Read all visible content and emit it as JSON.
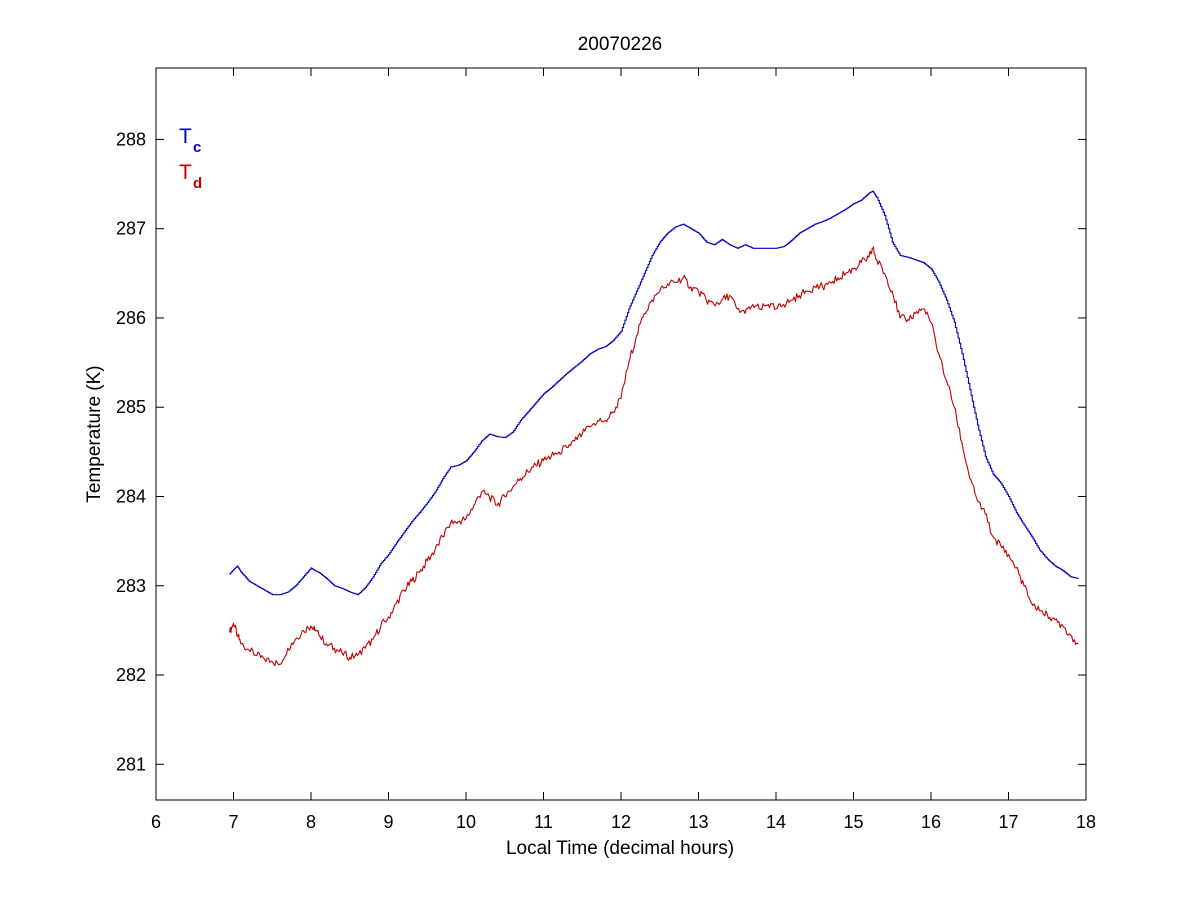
{
  "chart_data": {
    "type": "line",
    "title": "20070226",
    "xlabel": "Local Time (decimal hours)",
    "ylabel": "Temperature (K)",
    "xlim": [
      6,
      18
    ],
    "ylim": [
      280.6,
      288.8
    ],
    "xticks": [
      6,
      7,
      8,
      9,
      10,
      11,
      12,
      13,
      14,
      15,
      16,
      17,
      18
    ],
    "yticks": [
      281,
      282,
      283,
      284,
      285,
      286,
      287,
      288
    ],
    "grid": false,
    "legend_placement": "top-left",
    "series": [
      {
        "key": "tc",
        "legend_main": "T",
        "legend_sub": "c",
        "color": "#0000c0",
        "x": [
          6.95,
          7.0,
          7.05,
          7.1,
          7.2,
          7.3,
          7.4,
          7.5,
          7.6,
          7.7,
          7.8,
          7.9,
          8.0,
          8.05,
          8.1,
          8.2,
          8.3,
          8.4,
          8.5,
          8.6,
          8.7,
          8.8,
          8.9,
          9.0,
          9.1,
          9.2,
          9.3,
          9.4,
          9.5,
          9.6,
          9.7,
          9.8,
          9.9,
          10.0,
          10.1,
          10.2,
          10.3,
          10.4,
          10.5,
          10.6,
          10.7,
          10.8,
          10.9,
          11.0,
          11.1,
          11.2,
          11.3,
          11.4,
          11.5,
          11.6,
          11.7,
          11.8,
          11.9,
          12.0,
          12.1,
          12.2,
          12.3,
          12.4,
          12.5,
          12.6,
          12.7,
          12.8,
          12.9,
          13.0,
          13.1,
          13.2,
          13.3,
          13.4,
          13.5,
          13.6,
          13.7,
          13.8,
          13.9,
          14.0,
          14.1,
          14.2,
          14.3,
          14.4,
          14.5,
          14.6,
          14.7,
          14.8,
          14.9,
          15.0,
          15.1,
          15.2,
          15.25,
          15.3,
          15.4,
          15.5,
          15.6,
          15.7,
          15.8,
          15.9,
          16.0,
          16.1,
          16.2,
          16.3,
          16.4,
          16.5,
          16.6,
          16.7,
          16.8,
          16.9,
          17.0,
          17.1,
          17.2,
          17.3,
          17.4,
          17.5,
          17.6,
          17.7,
          17.8,
          17.9
        ],
        "y": [
          283.13,
          283.18,
          283.22,
          283.15,
          283.05,
          283.0,
          282.95,
          282.9,
          282.9,
          282.93,
          283.0,
          283.1,
          283.2,
          283.17,
          283.15,
          283.08,
          283.0,
          282.97,
          282.93,
          282.9,
          282.98,
          283.1,
          283.25,
          283.35,
          283.48,
          283.6,
          283.72,
          283.82,
          283.93,
          284.05,
          284.2,
          284.33,
          284.35,
          284.4,
          284.5,
          284.62,
          284.7,
          284.67,
          284.66,
          284.72,
          284.85,
          284.95,
          285.05,
          285.15,
          285.22,
          285.3,
          285.38,
          285.45,
          285.52,
          285.6,
          285.65,
          285.68,
          285.75,
          285.85,
          286.1,
          286.3,
          286.5,
          286.7,
          286.85,
          286.95,
          287.02,
          287.05,
          287.0,
          286.95,
          286.85,
          286.82,
          286.88,
          286.82,
          286.78,
          286.82,
          286.78,
          286.78,
          286.78,
          286.78,
          286.8,
          286.87,
          286.95,
          287.0,
          287.05,
          287.08,
          287.12,
          287.17,
          287.22,
          287.28,
          287.32,
          287.4,
          287.42,
          287.35,
          287.15,
          286.85,
          286.7,
          286.68,
          286.65,
          286.62,
          286.55,
          286.4,
          286.2,
          285.95,
          285.6,
          285.2,
          284.8,
          284.45,
          284.25,
          284.15,
          284.0,
          283.82,
          283.68,
          283.55,
          283.4,
          283.3,
          283.22,
          283.17,
          283.1,
          283.08
        ]
      },
      {
        "key": "td",
        "legend_main": "T",
        "legend_sub": "d",
        "color": "#c00000",
        "x": [
          6.95,
          7.0,
          7.05,
          7.1,
          7.2,
          7.3,
          7.4,
          7.5,
          7.6,
          7.7,
          7.8,
          7.9,
          8.0,
          8.05,
          8.1,
          8.2,
          8.3,
          8.4,
          8.5,
          8.6,
          8.7,
          8.8,
          8.9,
          9.0,
          9.1,
          9.2,
          9.3,
          9.4,
          9.5,
          9.6,
          9.7,
          9.8,
          9.9,
          10.0,
          10.1,
          10.2,
          10.3,
          10.4,
          10.5,
          10.6,
          10.7,
          10.8,
          10.9,
          11.0,
          11.1,
          11.2,
          11.3,
          11.4,
          11.5,
          11.6,
          11.7,
          11.8,
          11.9,
          12.0,
          12.1,
          12.2,
          12.3,
          12.4,
          12.5,
          12.6,
          12.7,
          12.8,
          12.9,
          13.0,
          13.1,
          13.2,
          13.3,
          13.4,
          13.5,
          13.6,
          13.7,
          13.8,
          13.9,
          14.0,
          14.1,
          14.2,
          14.3,
          14.4,
          14.5,
          14.6,
          14.7,
          14.8,
          14.9,
          15.0,
          15.1,
          15.2,
          15.25,
          15.3,
          15.4,
          15.5,
          15.6,
          15.7,
          15.8,
          15.9,
          16.0,
          16.1,
          16.2,
          16.3,
          16.4,
          16.5,
          16.6,
          16.7,
          16.8,
          16.9,
          17.0,
          17.1,
          17.2,
          17.3,
          17.4,
          17.5,
          17.6,
          17.7,
          17.8,
          17.9
        ],
        "y": [
          282.48,
          282.58,
          282.45,
          282.35,
          282.28,
          282.22,
          282.18,
          282.15,
          282.12,
          282.3,
          282.4,
          282.5,
          282.55,
          282.5,
          282.45,
          282.35,
          282.3,
          282.25,
          282.2,
          282.22,
          282.3,
          282.4,
          282.55,
          282.65,
          282.8,
          282.95,
          283.05,
          283.15,
          283.28,
          283.4,
          283.55,
          283.7,
          283.72,
          283.75,
          283.9,
          284.05,
          284.0,
          283.9,
          284.0,
          284.1,
          284.2,
          284.28,
          284.35,
          284.4,
          284.45,
          284.5,
          284.55,
          284.62,
          284.7,
          284.78,
          284.85,
          284.85,
          284.95,
          285.1,
          285.5,
          285.8,
          286.05,
          286.2,
          286.3,
          286.38,
          286.4,
          286.45,
          286.35,
          286.3,
          286.2,
          286.15,
          286.2,
          286.25,
          286.1,
          286.05,
          286.15,
          286.1,
          286.15,
          286.1,
          286.15,
          286.2,
          286.25,
          286.3,
          286.35,
          286.35,
          286.4,
          286.45,
          286.5,
          286.55,
          286.62,
          286.68,
          286.78,
          286.65,
          286.5,
          286.3,
          286.0,
          285.98,
          286.05,
          286.1,
          285.95,
          285.6,
          285.3,
          285.0,
          284.6,
          284.2,
          283.95,
          283.8,
          283.55,
          283.45,
          283.35,
          283.2,
          283.0,
          282.8,
          282.72,
          282.68,
          282.62,
          282.55,
          282.45,
          282.35
        ]
      }
    ]
  }
}
